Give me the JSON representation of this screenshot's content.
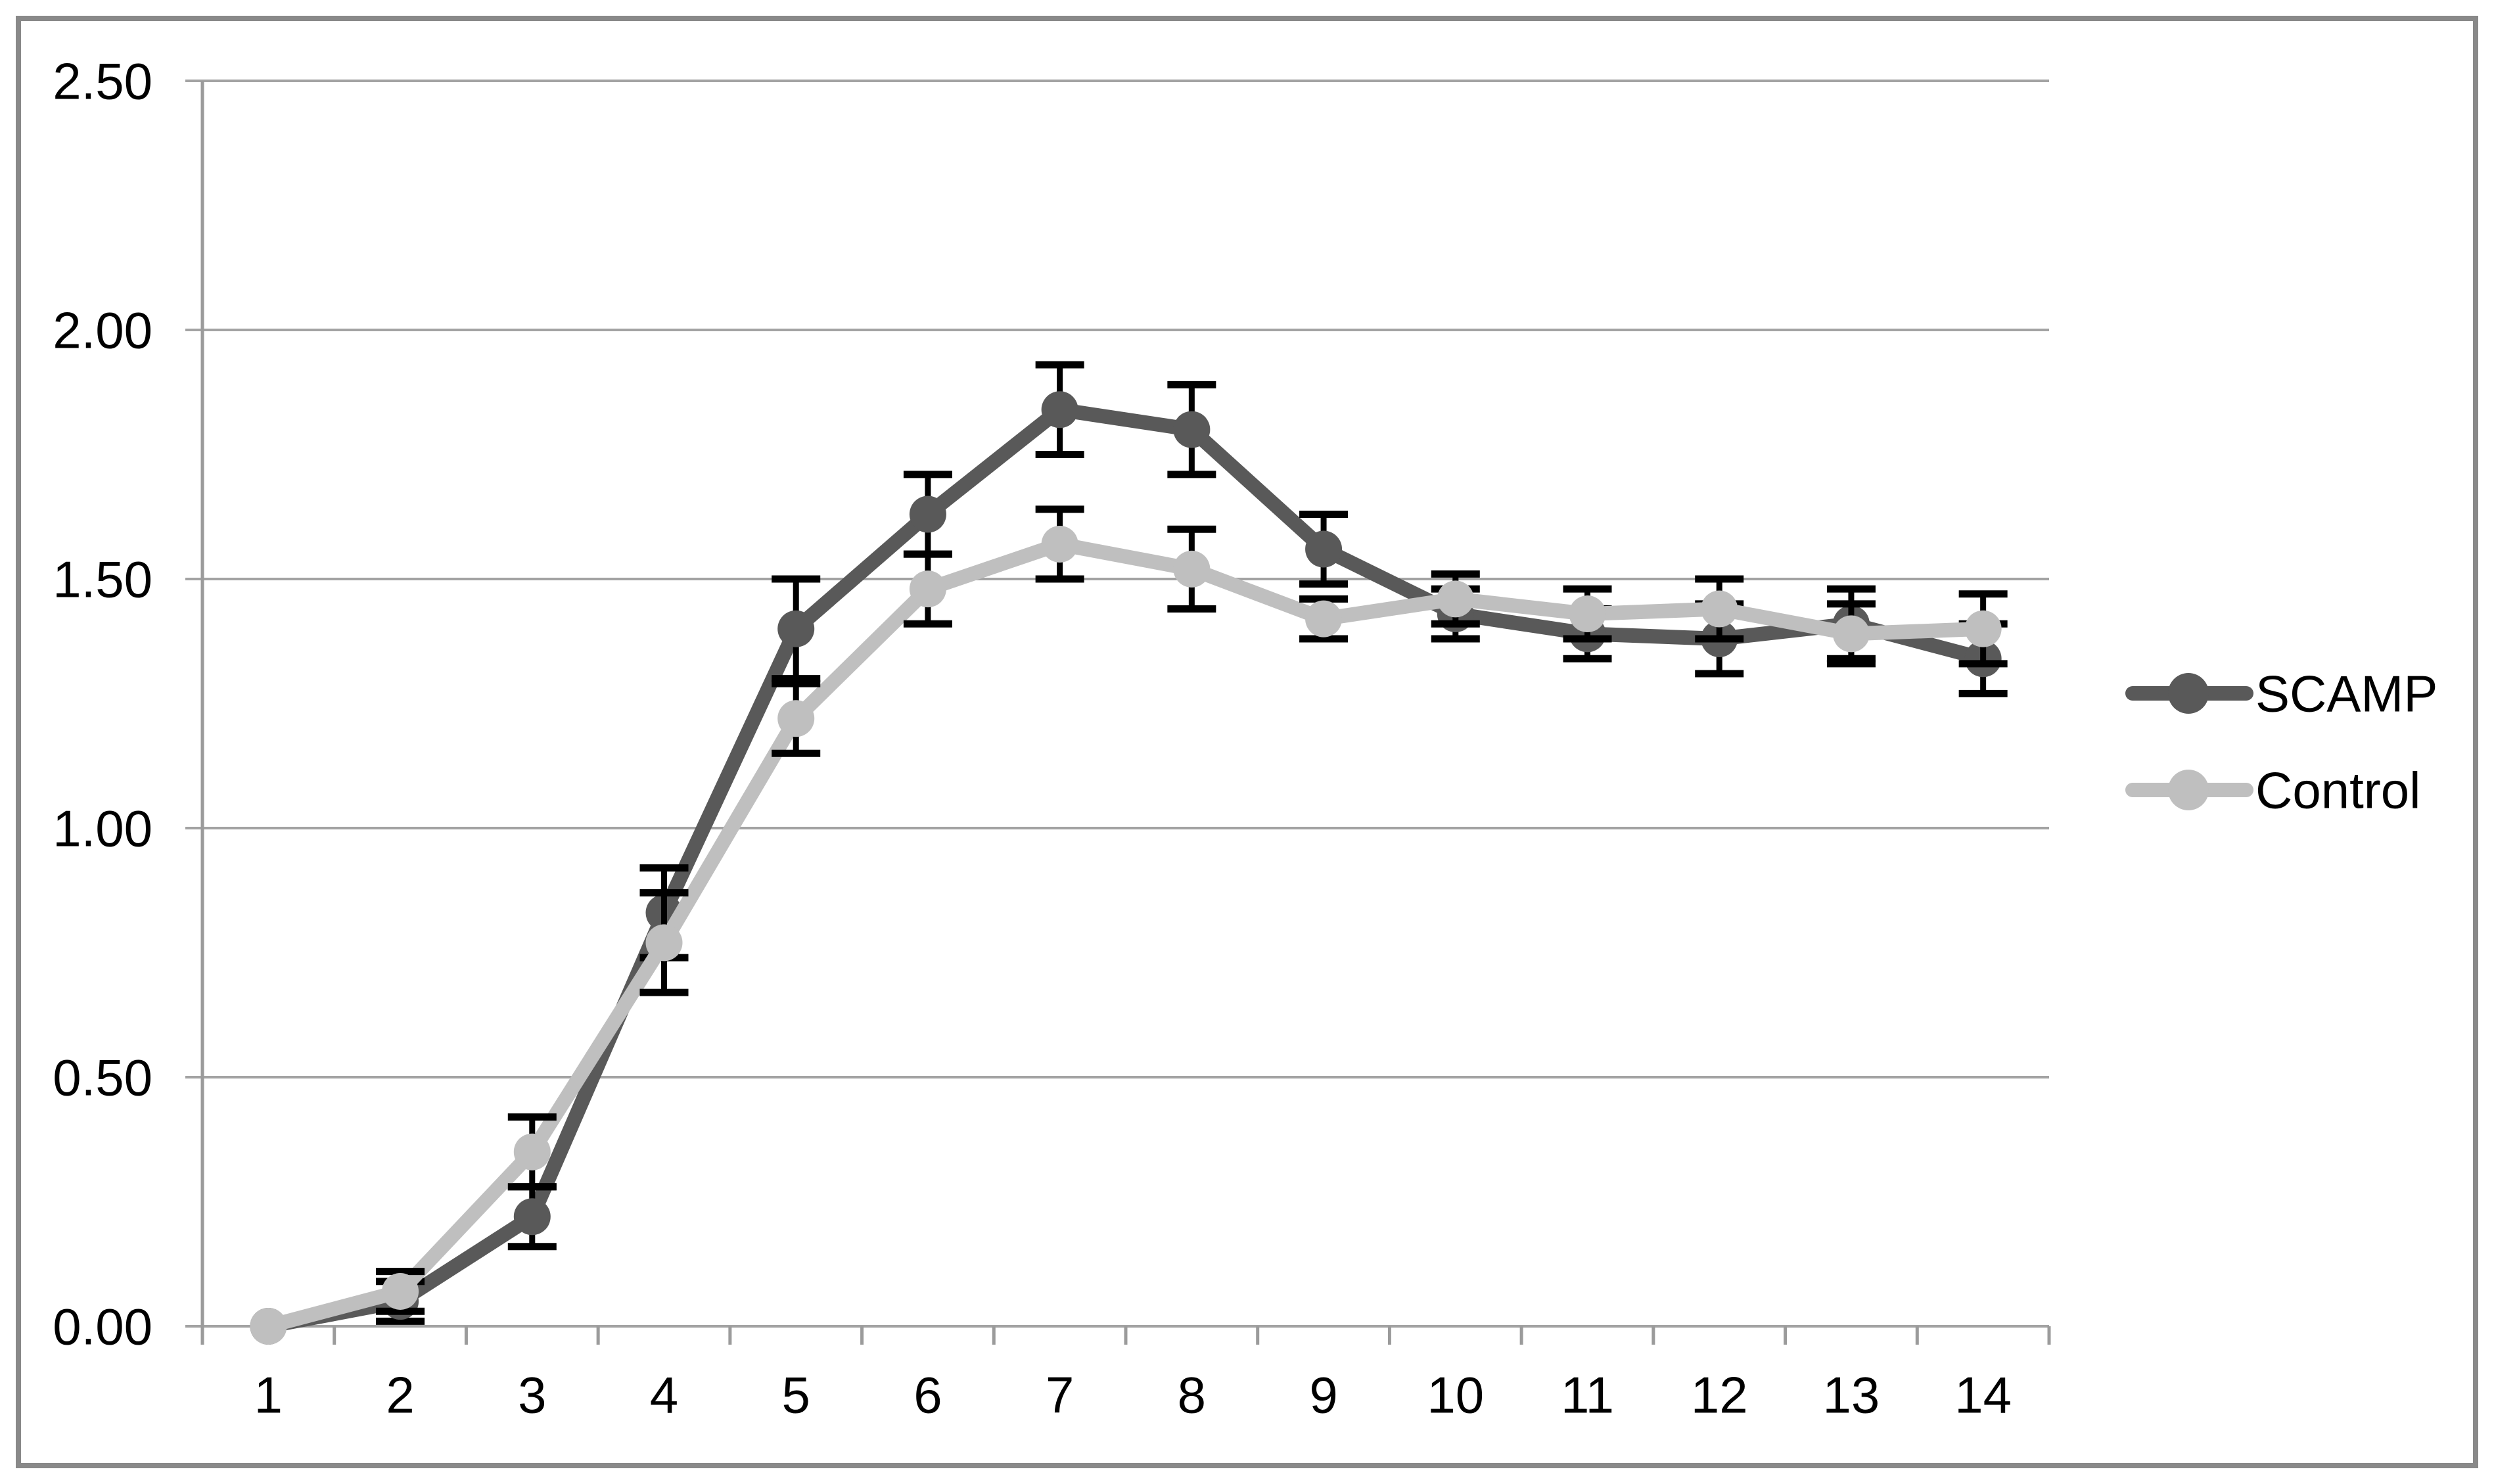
{
  "chart_data": {
    "type": "line",
    "title": "",
    "xlabel": "",
    "ylabel": "",
    "categories": [
      "1",
      "2",
      "3",
      "4",
      "5",
      "6",
      "7",
      "8",
      "9",
      "10",
      "11",
      "12",
      "13",
      "14"
    ],
    "series": [
      {
        "name": "SCAMP",
        "color": "#595959",
        "values": [
          0.0,
          0.05,
          0.22,
          0.83,
          1.4,
          1.63,
          1.84,
          1.8,
          1.56,
          1.43,
          1.39,
          1.38,
          1.41,
          1.34
        ],
        "errors": [
          0.0,
          0.04,
          0.06,
          0.09,
          0.1,
          0.08,
          0.09,
          0.09,
          0.07,
          0.05,
          0.05,
          0.07,
          0.07,
          0.07
        ]
      },
      {
        "name": "Control",
        "color": "#bfbfbf",
        "values": [
          0.0,
          0.07,
          0.35,
          0.77,
          1.22,
          1.48,
          1.57,
          1.52,
          1.42,
          1.46,
          1.43,
          1.44,
          1.39,
          1.4
        ],
        "errors": [
          0.0,
          0.04,
          0.07,
          0.1,
          0.07,
          0.07,
          0.07,
          0.08,
          0.04,
          0.05,
          0.05,
          0.06,
          0.06,
          0.07
        ]
      }
    ],
    "ylim": [
      0.0,
      2.5
    ],
    "ytick_labels": [
      "0.00",
      "0.50",
      "1.00",
      "1.50",
      "2.00",
      "2.50"
    ],
    "grid": "horizontal",
    "legend_position": "right",
    "error_bars": true,
    "marker": "circle",
    "colors": {
      "gridline": "#a3a3a3",
      "axis": "#9b9b9b",
      "border": "#898989",
      "error_bar": "#000000",
      "text": "#000000",
      "background": "#ffffff"
    }
  }
}
